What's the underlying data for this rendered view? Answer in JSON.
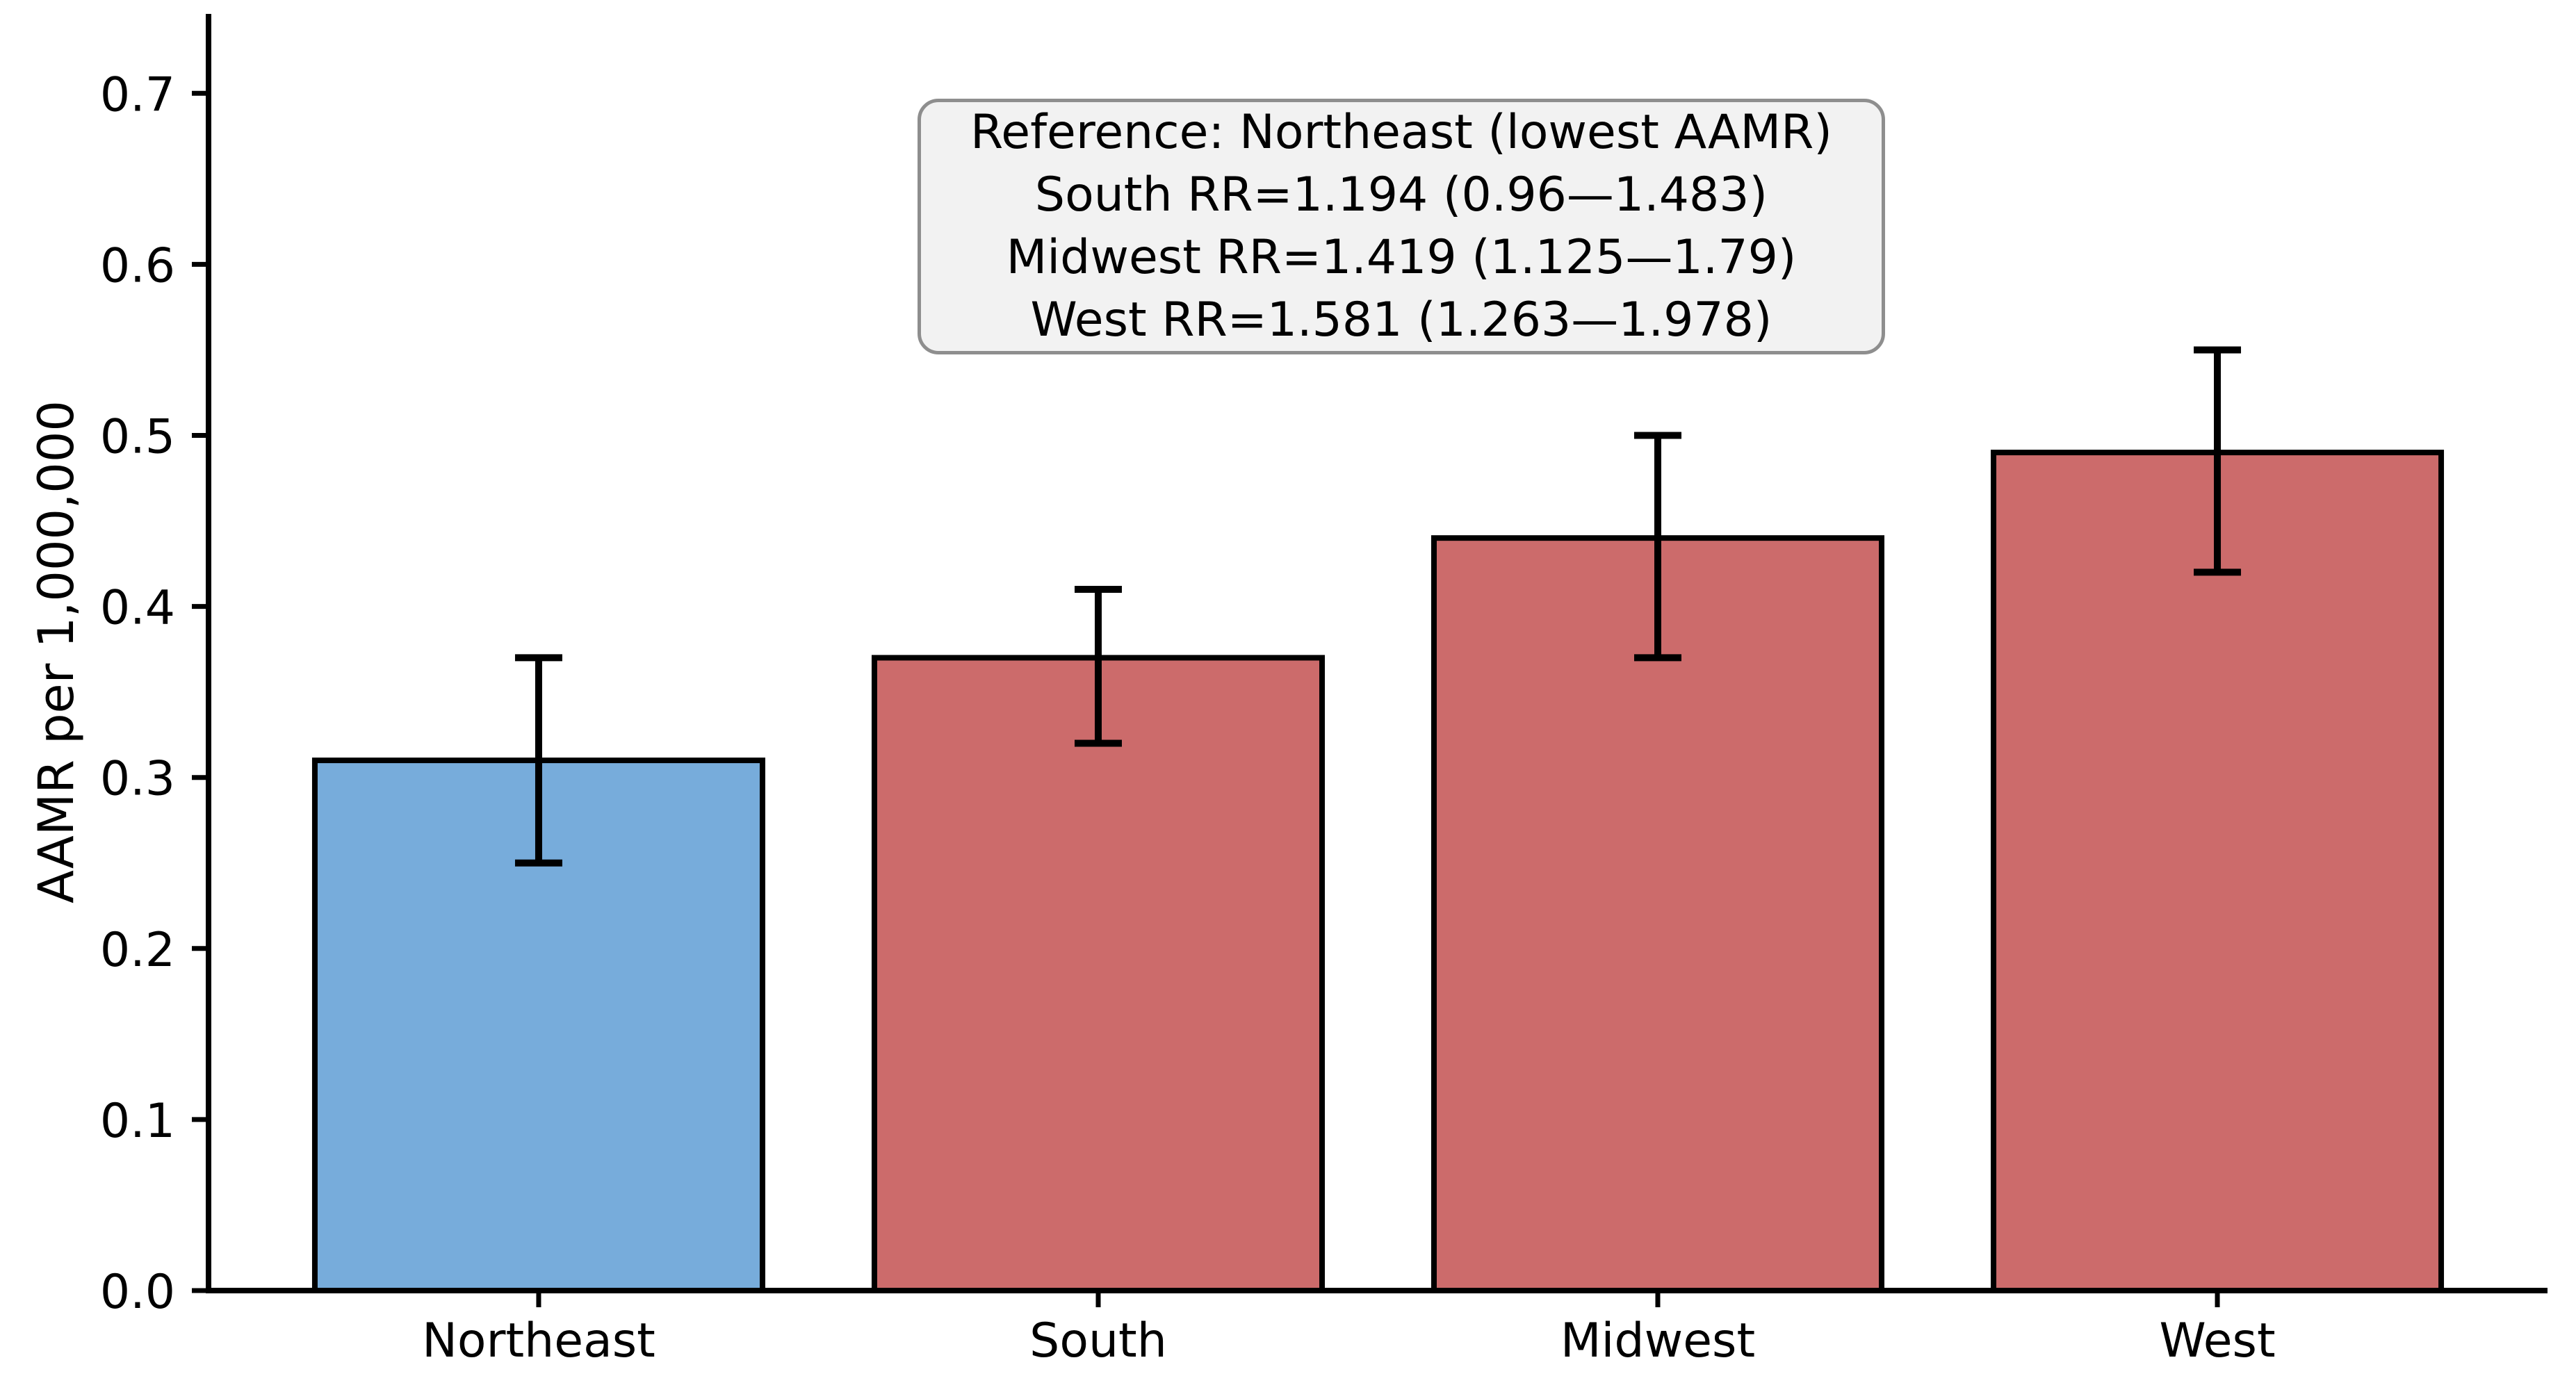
{
  "figure": {
    "background": "#ffffff",
    "text_color": "#000000"
  },
  "chart_data": {
    "type": "bar",
    "title": "",
    "xlabel": "",
    "ylabel": "AAMR per 1,000,000",
    "categories": [
      "Northeast",
      "South",
      "Midwest",
      "West"
    ],
    "values": [
      0.31,
      0.37,
      0.44,
      0.49
    ],
    "error_low": [
      0.25,
      0.32,
      0.37,
      0.42
    ],
    "error_high": [
      0.37,
      0.41,
      0.5,
      0.55
    ],
    "bar_colors": [
      "#77acdb",
      "#cc6b6b",
      "#cc6b6b",
      "#cc6b6b"
    ],
    "bar_edge_color": "#000000",
    "error_bar_color": "#000000",
    "ylim": [
      0,
      0.75
    ],
    "yticks": [
      "0.0",
      "0.1",
      "0.2",
      "0.3",
      "0.4",
      "0.5",
      "0.6",
      "0.7"
    ],
    "grid": false,
    "legend": null,
    "annotation": {
      "lines": [
        "Reference: Northeast (lowest AAMR)",
        "South RR=1.194 (0.96—1.483)",
        "Midwest RR=1.419 (1.125—1.79)",
        "West RR=1.581 (1.263—1.978)"
      ],
      "fill": "#f2f2f2",
      "border_color": "#8e8e8e",
      "text_color": "#000000"
    }
  }
}
